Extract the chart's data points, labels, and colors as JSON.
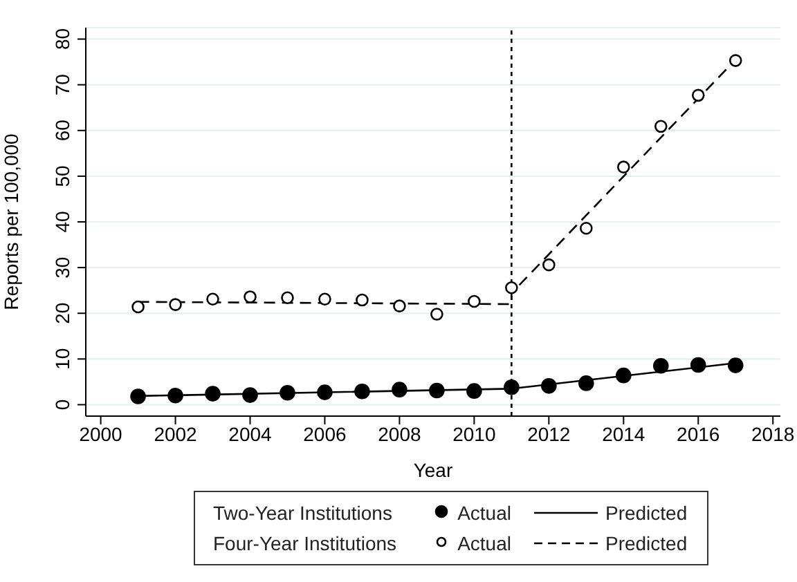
{
  "chart_data": {
    "type": "scatter",
    "xlabel": "Year",
    "ylabel": "Reports per 100,000",
    "xlim": [
      1999.6,
      2018.2
    ],
    "xticks": [
      2000,
      2002,
      2004,
      2006,
      2008,
      2010,
      2012,
      2014,
      2016,
      2018
    ],
    "ylim": [
      -2.5,
      82.5
    ],
    "yticks": [
      0,
      10,
      20,
      30,
      40,
      50,
      60,
      70,
      80
    ],
    "grid": "y",
    "legend": "bottom",
    "annotations": [
      "Two-Year Institutions",
      "Four-Year Institutions"
    ],
    "ref_lines": [
      {
        "axis": "x",
        "value": 2011,
        "line_style": "dotted",
        "color": "#000000"
      }
    ],
    "series": [
      {
        "name": "Actual",
        "marker": "circle",
        "color": "#000000",
        "x": [
          2001,
          2002,
          2003,
          2004,
          2005,
          2006,
          2007,
          2008,
          2009,
          2010,
          2011,
          2012,
          2013,
          2014,
          2015,
          2016,
          2017
        ],
        "values": [
          1.8,
          2.0,
          2.4,
          2.1,
          2.6,
          2.7,
          2.9,
          3.3,
          3.1,
          3.0,
          3.8,
          4.1,
          4.7,
          6.4,
          8.5,
          8.7,
          8.6
        ]
      },
      {
        "name": "Predicted",
        "type": "line",
        "line_style": "solid",
        "color": "#000000",
        "x": [
          2001,
          2011,
          2017
        ],
        "values": [
          1.9,
          3.5,
          9.1
        ]
      },
      {
        "name": "Actual",
        "marker": "circle",
        "color": "#ffffff",
        "x": [
          2001,
          2002,
          2003,
          2004,
          2005,
          2006,
          2007,
          2008,
          2009,
          2010,
          2011,
          2012,
          2013,
          2014,
          2015,
          2016,
          2017
        ],
        "values": [
          21.4,
          21.9,
          23.1,
          23.6,
          23.4,
          23.1,
          22.9,
          21.6,
          19.8,
          22.6,
          25.6,
          30.6,
          38.6,
          52.0,
          60.9,
          67.7,
          75.3
        ]
      },
      {
        "name": "Predicted",
        "type": "line",
        "line_style": "dashed",
        "color": "#000000",
        "x": [
          2001,
          2011,
          2011,
          2017
        ],
        "values": [
          22.5,
          22.0,
          24.4,
          75.5
        ]
      }
    ]
  }
}
